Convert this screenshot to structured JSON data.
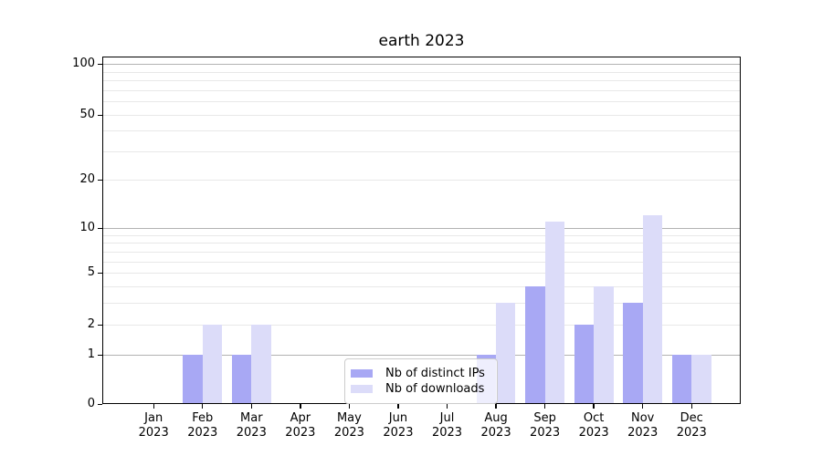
{
  "title": "earth 2023",
  "colors": {
    "distinct_ips": "#a8a8f4",
    "downloads": "#dcdcf9",
    "grid_major": "#b2b2b2",
    "grid_minor": "#e8e8e8",
    "axis": "#000000",
    "legend_border": "#cccccc"
  },
  "legend": {
    "items": [
      {
        "label": "Nb of distinct IPs",
        "series_key": "distinct_ips"
      },
      {
        "label": "Nb of downloads",
        "series_key": "downloads"
      }
    ]
  },
  "y_axis": {
    "labeled_ticks": [
      0,
      1,
      2,
      5,
      10,
      20,
      50,
      100
    ],
    "major_grid": [
      1,
      10,
      100
    ],
    "minor_grid": [
      2,
      3,
      4,
      5,
      6,
      7,
      8,
      9,
      20,
      30,
      40,
      50,
      60,
      70,
      80,
      90
    ]
  },
  "x_axis": {
    "months": [
      "Jan",
      "Feb",
      "Mar",
      "Apr",
      "May",
      "Jun",
      "Jul",
      "Aug",
      "Sep",
      "Oct",
      "Nov",
      "Dec"
    ],
    "year": "2023"
  },
  "chart_data": {
    "type": "bar",
    "title": "earth 2023",
    "categories": [
      "Jan 2023",
      "Feb 2023",
      "Mar 2023",
      "Apr 2023",
      "May 2023",
      "Jun 2023",
      "Jul 2023",
      "Aug 2023",
      "Sep 2023",
      "Oct 2023",
      "Nov 2023",
      "Dec 2023"
    ],
    "series": [
      {
        "name": "Nb of distinct IPs",
        "key": "distinct_ips",
        "color": "#a8a8f4",
        "values": [
          0,
          1,
          1,
          0,
          0,
          0,
          0,
          1,
          4,
          2,
          3,
          1
        ]
      },
      {
        "name": "Nb of downloads",
        "key": "downloads",
        "color": "#dcdcf9",
        "values": [
          0,
          2,
          2,
          0,
          0,
          0,
          0,
          3,
          11,
          4,
          12,
          1
        ]
      }
    ],
    "xlabel": "",
    "ylabel": "",
    "yscale": "log-like (position proportional to log(1+value))",
    "ylim": [
      0,
      100
    ],
    "y_ticks": [
      0,
      1,
      2,
      5,
      10,
      20,
      50,
      100
    ],
    "grid": true,
    "legend_position": "lower center"
  }
}
